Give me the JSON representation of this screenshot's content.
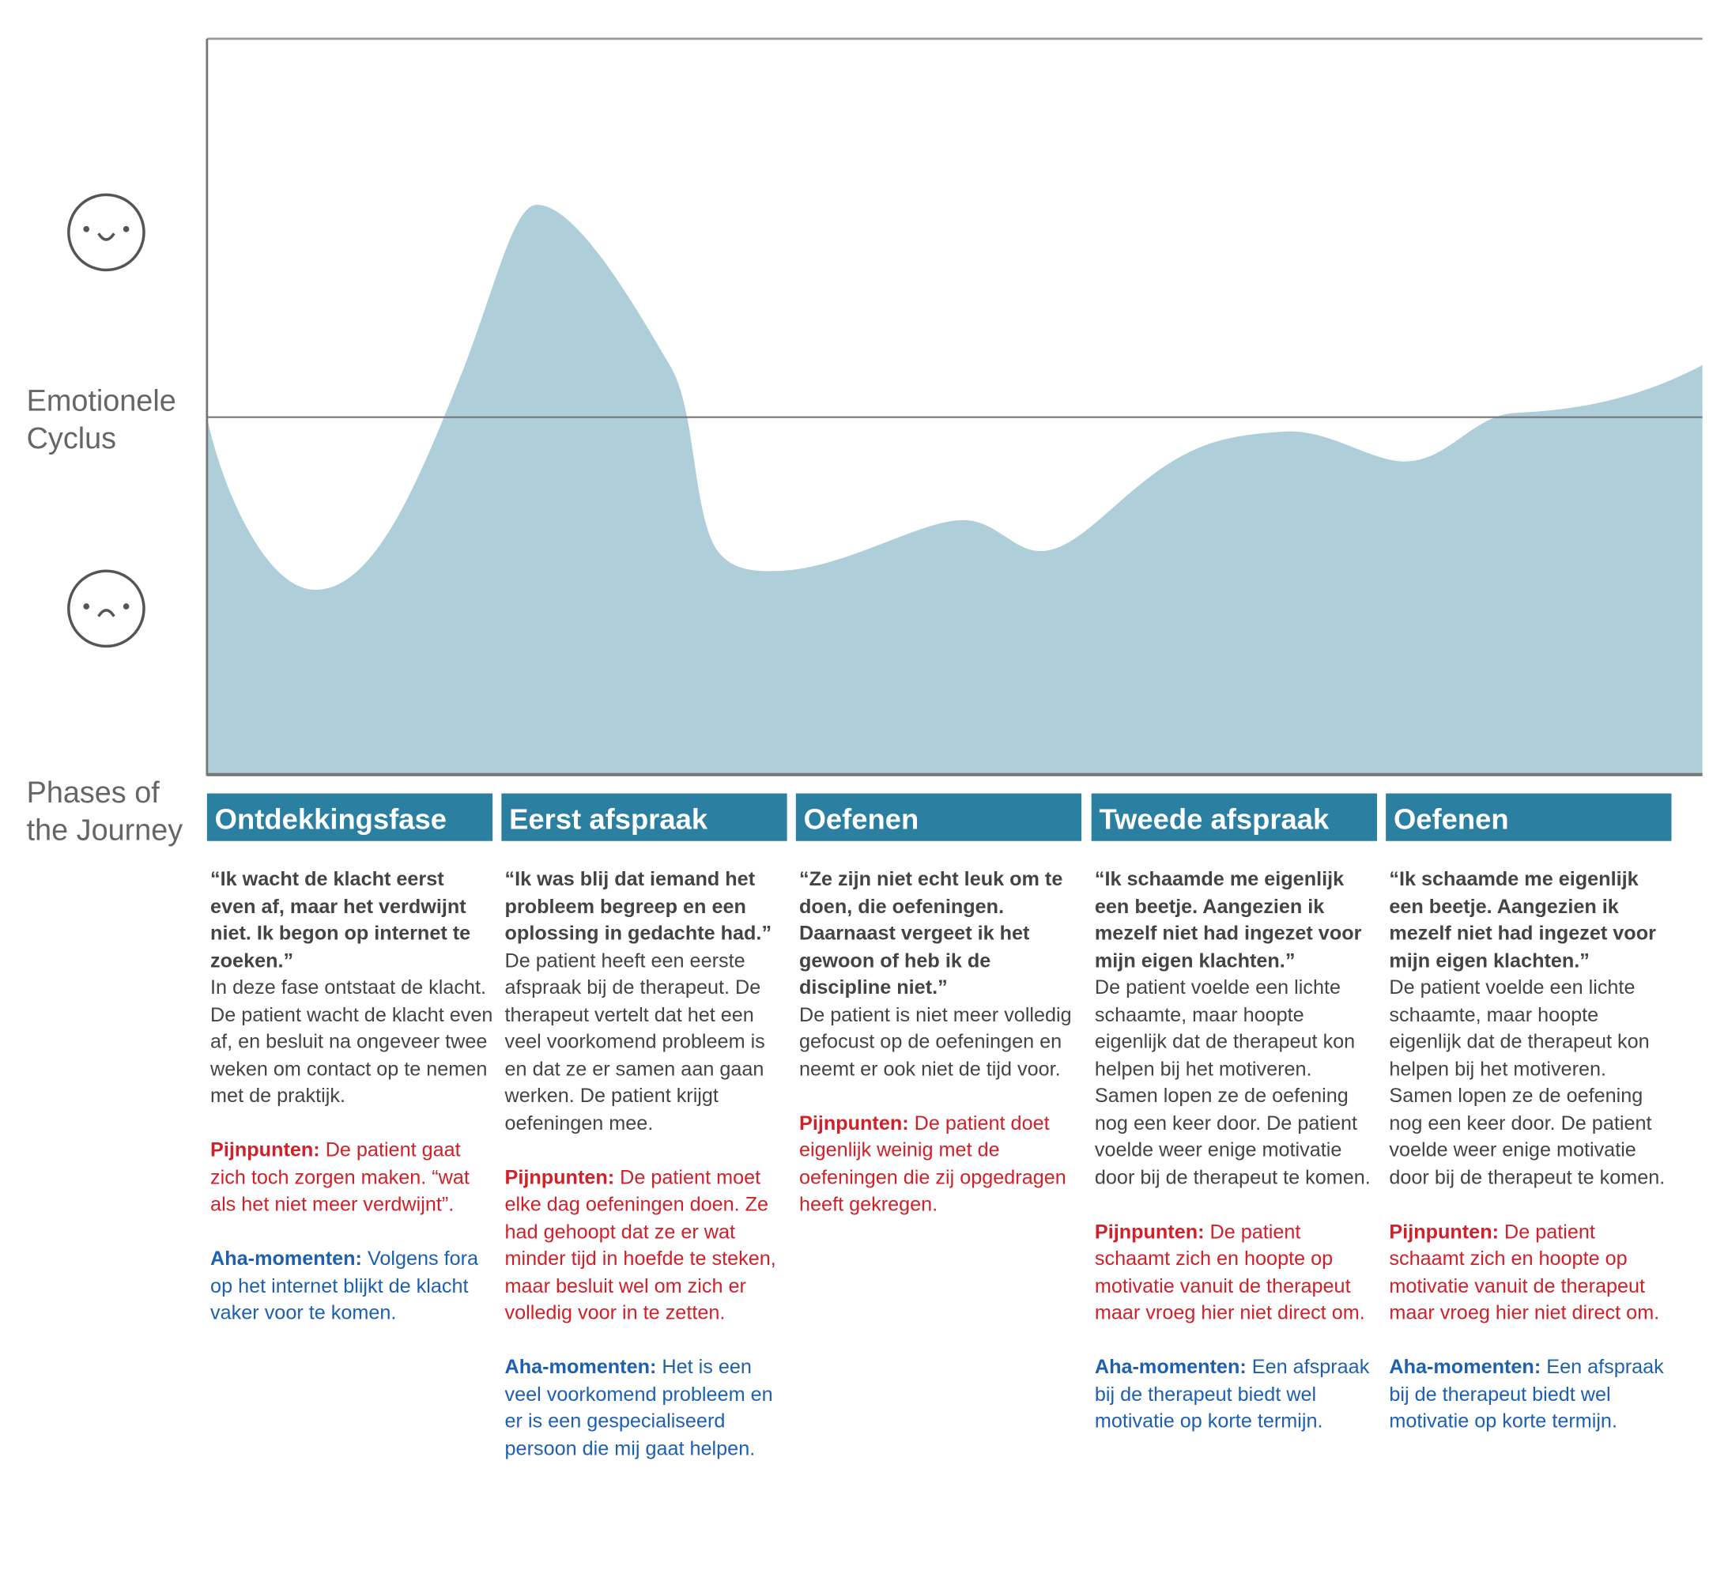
{
  "y_label": [
    "Emotionele",
    "Cyclus"
  ],
  "x_label": [
    "Phases of",
    "the Journey"
  ],
  "phases": [
    {
      "title": "Ontdekkingsfase",
      "quote": "“Ik wacht de klacht eerst even af, maar het verdwijnt niet. Ik begon op internet te zoeken.”",
      "description": "In deze fase ontstaat de klacht. De patient wacht de klacht even af, en besluit na ongeveer twee weken om contact op te nemen met de praktijk.",
      "pain": {
        "label": "Pijnpunten:",
        "text": "De patient gaat zich toch zorgen maken. “wat als het niet meer verdwijnt”."
      },
      "aha": {
        "label": "Aha-momenten:",
        "text": "Volgens fora op het internet blijkt de klacht vaker voor te komen."
      }
    },
    {
      "title": "Eerst afspraak",
      "quote": "“Ik was blij dat iemand het probleem begreep en een oplossing in gedachte had.”",
      "description": "De patient heeft een eerste afspraak bij de therapeut. De therapeut vertelt dat het een veel voorkomend probleem is en dat ze er samen aan gaan werken. De patient krijgt oefeningen mee.",
      "pain": {
        "label": "Pijnpunten:",
        "text": "De patient moet elke dag oefeningen doen. Ze had gehoopt dat ze er wat minder tijd in hoefde te steken, maar besluit wel om zich er volledig voor in te zetten."
      },
      "aha": {
        "label": "Aha-momenten:",
        "text": "Het is een veel voorkomend probleem en er is een gespecialiseerd persoon die mij gaat helpen."
      }
    },
    {
      "title": "Oefenen",
      "quote": "“Ze zijn niet echt leuk om te doen, die oefeningen. Daarnaast vergeet ik het gewoon of heb ik de discipline niet.”",
      "description": "De patient is niet meer volledig gefocust op de oefeningen en neemt er ook niet de tijd voor.",
      "pain": {
        "label": "Pijnpunten:",
        "text": "De patient doet eigenlijk weinig met de oefeningen die zij opgedragen heeft gekregen."
      }
    },
    {
      "title": "Tweede afspraak",
      "quote": "“Ik schaamde me eigenlijk een beetje. Aangezien ik mezelf niet had ingezet voor mijn eigen klachten.”",
      "description": "De patient voelde een lichte schaamte, maar hoopte eigenlijk dat de therapeut kon helpen bij het motiveren. Samen lopen ze de oefening nog een keer door. De patient voelde weer enige motivatie door bij de therapeut te komen.",
      "pain": {
        "label": "Pijnpunten:",
        "text": "De patient schaamt zich en hoopte op motivatie vanuit de therapeut maar vroeg hier niet direct om."
      },
      "aha": {
        "label": "Aha-momenten:",
        "text": "Een afspraak bij de therapeut biedt wel motivatie op korte termijn."
      }
    },
    {
      "title": "Oefenen",
      "quote": "“Ik schaamde me eigenlijk een beetje. Aangezien ik mezelf niet had ingezet voor mijn eigen klachten.”",
      "description": "De patient voelde een lichte schaamte, maar hoopte eigenlijk dat de therapeut kon helpen bij het motiveren. Samen lopen ze de oefening nog een keer door. De patient voelde weer enige motivatie door bij de therapeut te komen.",
      "pain": {
        "label": "Pijnpunten:",
        "text": "De patient schaamt zich en hoopte op motivatie vanuit de therapeut maar vroeg hier niet direct om."
      },
      "aha": {
        "label": "Aha-momenten:",
        "text": "Een afspraak bij de therapeut biedt wel motivatie op korte termijn."
      }
    }
  ]
}
